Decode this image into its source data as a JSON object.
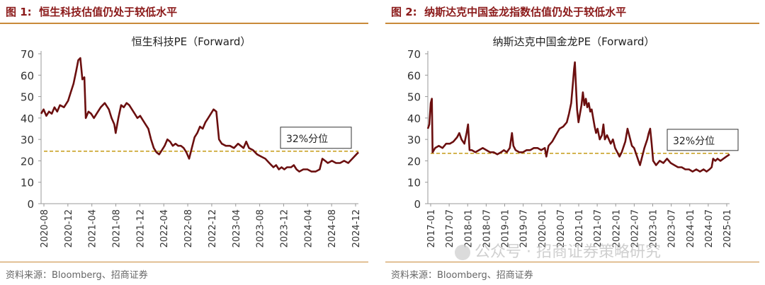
{
  "figure_left": {
    "label": "图 1:",
    "title": "恒生科技估值仍处于较低水平",
    "source": "资料来源：Bloomberg、招商证券"
  },
  "figure_right": {
    "label": "图 2:",
    "title": "纳斯达克中国金龙指数估值仍处于较低水平",
    "source": "资料来源：Bloomberg、招商证券"
  },
  "watermark": "公众号 · 招商证券策略研究",
  "colors": {
    "line": "#6b0f0f",
    "ref": "#c9a227",
    "title": "#8b1a1a",
    "rule": "#c98a3a"
  },
  "chart_data": [
    {
      "type": "line",
      "title": "恒生科技PE（Forward）",
      "ylim": [
        0,
        70
      ],
      "yticks": [
        0,
        10,
        20,
        30,
        40,
        50,
        60,
        70
      ],
      "xticks": [
        "2020-08",
        "2020-12",
        "2021-04",
        "2021-08",
        "2021-12",
        "2022-04",
        "2022-08",
        "2022-12",
        "2023-04",
        "2023-08",
        "2023-12",
        "2024-04",
        "2024-08",
        "2024-12"
      ],
      "x_start": 2020.583,
      "x_end": 2025.25,
      "reference": {
        "value": 24.5,
        "label": "32%分位"
      },
      "series": [
        {
          "name": "PE",
          "points": [
            [
              2020.583,
              42
            ],
            [
              2020.62,
              44
            ],
            [
              2020.66,
              41
            ],
            [
              2020.7,
              43
            ],
            [
              2020.74,
              42
            ],
            [
              2020.78,
              45
            ],
            [
              2020.82,
              43
            ],
            [
              2020.86,
              46
            ],
            [
              2020.92,
              45
            ],
            [
              2020.98,
              48
            ],
            [
              2021.02,
              52
            ],
            [
              2021.06,
              56
            ],
            [
              2021.1,
              62
            ],
            [
              2021.13,
              67
            ],
            [
              2021.16,
              68
            ],
            [
              2021.19,
              58
            ],
            [
              2021.22,
              59
            ],
            [
              2021.24,
              40
            ],
            [
              2021.28,
              43
            ],
            [
              2021.32,
              42
            ],
            [
              2021.36,
              40
            ],
            [
              2021.4,
              42
            ],
            [
              2021.46,
              45
            ],
            [
              2021.52,
              47
            ],
            [
              2021.58,
              44
            ],
            [
              2021.62,
              40
            ],
            [
              2021.66,
              37
            ],
            [
              2021.68,
              33
            ],
            [
              2021.72,
              40
            ],
            [
              2021.76,
              46
            ],
            [
              2021.8,
              45
            ],
            [
              2021.84,
              47
            ],
            [
              2021.88,
              46
            ],
            [
              2021.92,
              44
            ],
            [
              2021.96,
              42
            ],
            [
              2022.0,
              40
            ],
            [
              2022.04,
              41
            ],
            [
              2022.08,
              39
            ],
            [
              2022.12,
              37
            ],
            [
              2022.16,
              35
            ],
            [
              2022.2,
              30
            ],
            [
              2022.24,
              26
            ],
            [
              2022.28,
              24
            ],
            [
              2022.32,
              23
            ],
            [
              2022.36,
              25
            ],
            [
              2022.4,
              27
            ],
            [
              2022.44,
              30
            ],
            [
              2022.48,
              29
            ],
            [
              2022.52,
              27
            ],
            [
              2022.56,
              28
            ],
            [
              2022.6,
              27
            ],
            [
              2022.64,
              27
            ],
            [
              2022.68,
              26
            ],
            [
              2022.72,
              24
            ],
            [
              2022.76,
              21
            ],
            [
              2022.8,
              26
            ],
            [
              2022.84,
              31
            ],
            [
              2022.88,
              33
            ],
            [
              2022.92,
              36
            ],
            [
              2022.96,
              35
            ],
            [
              2023.0,
              38
            ],
            [
              2023.04,
              40
            ],
            [
              2023.08,
              42
            ],
            [
              2023.12,
              44
            ],
            [
              2023.16,
              43
            ],
            [
              2023.2,
              30
            ],
            [
              2023.24,
              28
            ],
            [
              2023.3,
              27
            ],
            [
              2023.36,
              27
            ],
            [
              2023.42,
              26
            ],
            [
              2023.48,
              28
            ],
            [
              2023.52,
              27
            ],
            [
              2023.56,
              26
            ],
            [
              2023.6,
              29
            ],
            [
              2023.64,
              26
            ],
            [
              2023.7,
              25
            ],
            [
              2023.76,
              23
            ],
            [
              2023.82,
              22
            ],
            [
              2023.88,
              21
            ],
            [
              2023.94,
              19
            ],
            [
              2024.0,
              17
            ],
            [
              2024.04,
              18
            ],
            [
              2024.08,
              16
            ],
            [
              2024.12,
              17
            ],
            [
              2024.16,
              16
            ],
            [
              2024.2,
              17
            ],
            [
              2024.26,
              17
            ],
            [
              2024.3,
              18
            ],
            [
              2024.34,
              16
            ],
            [
              2024.38,
              15
            ],
            [
              2024.44,
              16
            ],
            [
              2024.5,
              16
            ],
            [
              2024.56,
              15
            ],
            [
              2024.62,
              15
            ],
            [
              2024.68,
              16
            ],
            [
              2024.72,
              21
            ],
            [
              2024.76,
              20
            ],
            [
              2024.8,
              19
            ],
            [
              2024.86,
              20
            ],
            [
              2024.92,
              19
            ],
            [
              2024.98,
              19
            ],
            [
              2025.04,
              20
            ],
            [
              2025.1,
              19
            ],
            [
              2025.16,
              21
            ],
            [
              2025.22,
              23
            ],
            [
              2025.25,
              24
            ]
          ]
        }
      ]
    },
    {
      "type": "line",
      "title": "纳斯达克中国金龙PE（Forward）",
      "ylim": [
        0,
        70
      ],
      "yticks": [
        0,
        10,
        20,
        30,
        40,
        50,
        60,
        70
      ],
      "xticks": [
        "2017-01",
        "2017-07",
        "2018-01",
        "2018-07",
        "2019-01",
        "2019-07",
        "2020-01",
        "2020-07",
        "2021-01",
        "2021-07",
        "2022-01",
        "2022-07",
        "2023-01",
        "2023-07",
        "2024-01",
        "2024-07",
        "2025-01"
      ],
      "x_start": 2017.0,
      "x_end": 2025.25,
      "reference": {
        "value": 23.5,
        "label": "32%分位"
      },
      "series": [
        {
          "name": "PE",
          "points": [
            [
              2017.0,
              35
            ],
            [
              2017.04,
              37
            ],
            [
              2017.08,
              47
            ],
            [
              2017.11,
              49
            ],
            [
              2017.13,
              24
            ],
            [
              2017.2,
              26
            ],
            [
              2017.3,
              27
            ],
            [
              2017.4,
              26
            ],
            [
              2017.5,
              28
            ],
            [
              2017.6,
              28
            ],
            [
              2017.7,
              29
            ],
            [
              2017.8,
              31
            ],
            [
              2017.86,
              33
            ],
            [
              2017.92,
              30
            ],
            [
              2018.0,
              28
            ],
            [
              2018.06,
              33
            ],
            [
              2018.1,
              37
            ],
            [
              2018.14,
              25
            ],
            [
              2018.2,
              25
            ],
            [
              2018.3,
              24
            ],
            [
              2018.4,
              25
            ],
            [
              2018.5,
              26
            ],
            [
              2018.6,
              25
            ],
            [
              2018.7,
              24
            ],
            [
              2018.8,
              24
            ],
            [
              2018.9,
              23
            ],
            [
              2019.0,
              24
            ],
            [
              2019.08,
              25
            ],
            [
              2019.16,
              24
            ],
            [
              2019.24,
              26
            ],
            [
              2019.3,
              33
            ],
            [
              2019.34,
              27
            ],
            [
              2019.4,
              25
            ],
            [
              2019.5,
              24
            ],
            [
              2019.6,
              24
            ],
            [
              2019.7,
              25
            ],
            [
              2019.8,
              25
            ],
            [
              2019.9,
              26
            ],
            [
              2020.0,
              26
            ],
            [
              2020.1,
              25
            ],
            [
              2020.2,
              26
            ],
            [
              2020.24,
              22
            ],
            [
              2020.3,
              27
            ],
            [
              2020.4,
              29
            ],
            [
              2020.5,
              32
            ],
            [
              2020.6,
              35
            ],
            [
              2020.7,
              36
            ],
            [
              2020.8,
              38
            ],
            [
              2020.86,
              42
            ],
            [
              2020.92,
              47
            ],
            [
              2020.96,
              55
            ],
            [
              2021.0,
              63
            ],
            [
              2021.02,
              66
            ],
            [
              2021.05,
              55
            ],
            [
              2021.08,
              44
            ],
            [
              2021.12,
              38
            ],
            [
              2021.16,
              42
            ],
            [
              2021.2,
              46
            ],
            [
              2021.24,
              52
            ],
            [
              2021.28,
              46
            ],
            [
              2021.32,
              49
            ],
            [
              2021.36,
              45
            ],
            [
              2021.4,
              47
            ],
            [
              2021.44,
              43
            ],
            [
              2021.48,
              44
            ],
            [
              2021.52,
              40
            ],
            [
              2021.56,
              36
            ],
            [
              2021.6,
              33
            ],
            [
              2021.64,
              35
            ],
            [
              2021.7,
              30
            ],
            [
              2021.76,
              32
            ],
            [
              2021.8,
              37
            ],
            [
              2021.84,
              30
            ],
            [
              2021.9,
              32
            ],
            [
              2022.0,
              28
            ],
            [
              2022.06,
              30
            ],
            [
              2022.12,
              26
            ],
            [
              2022.18,
              24
            ],
            [
              2022.24,
              22
            ],
            [
              2022.3,
              24
            ],
            [
              2022.4,
              29
            ],
            [
              2022.46,
              35
            ],
            [
              2022.52,
              31
            ],
            [
              2022.58,
              27
            ],
            [
              2022.64,
              26
            ],
            [
              2022.7,
              23
            ],
            [
              2022.76,
              20
            ],
            [
              2022.8,
              18
            ],
            [
              2022.86,
              22
            ],
            [
              2022.92,
              26
            ],
            [
              2023.0,
              30
            ],
            [
              2023.04,
              33
            ],
            [
              2023.08,
              35
            ],
            [
              2023.12,
              28
            ],
            [
              2023.16,
              20
            ],
            [
              2023.24,
              18
            ],
            [
              2023.34,
              20
            ],
            [
              2023.44,
              19
            ],
            [
              2023.54,
              21
            ],
            [
              2023.64,
              19
            ],
            [
              2023.74,
              18
            ],
            [
              2023.84,
              17
            ],
            [
              2023.94,
              17
            ],
            [
              2024.04,
              16
            ],
            [
              2024.14,
              16
            ],
            [
              2024.24,
              15
            ],
            [
              2024.34,
              16
            ],
            [
              2024.44,
              15
            ],
            [
              2024.54,
              16
            ],
            [
              2024.62,
              15
            ],
            [
              2024.7,
              16
            ],
            [
              2024.76,
              17
            ],
            [
              2024.8,
              21
            ],
            [
              2024.86,
              20
            ],
            [
              2024.92,
              21
            ],
            [
              2025.0,
              20
            ],
            [
              2025.08,
              21
            ],
            [
              2025.16,
              22
            ],
            [
              2025.25,
              23
            ]
          ]
        }
      ]
    }
  ]
}
